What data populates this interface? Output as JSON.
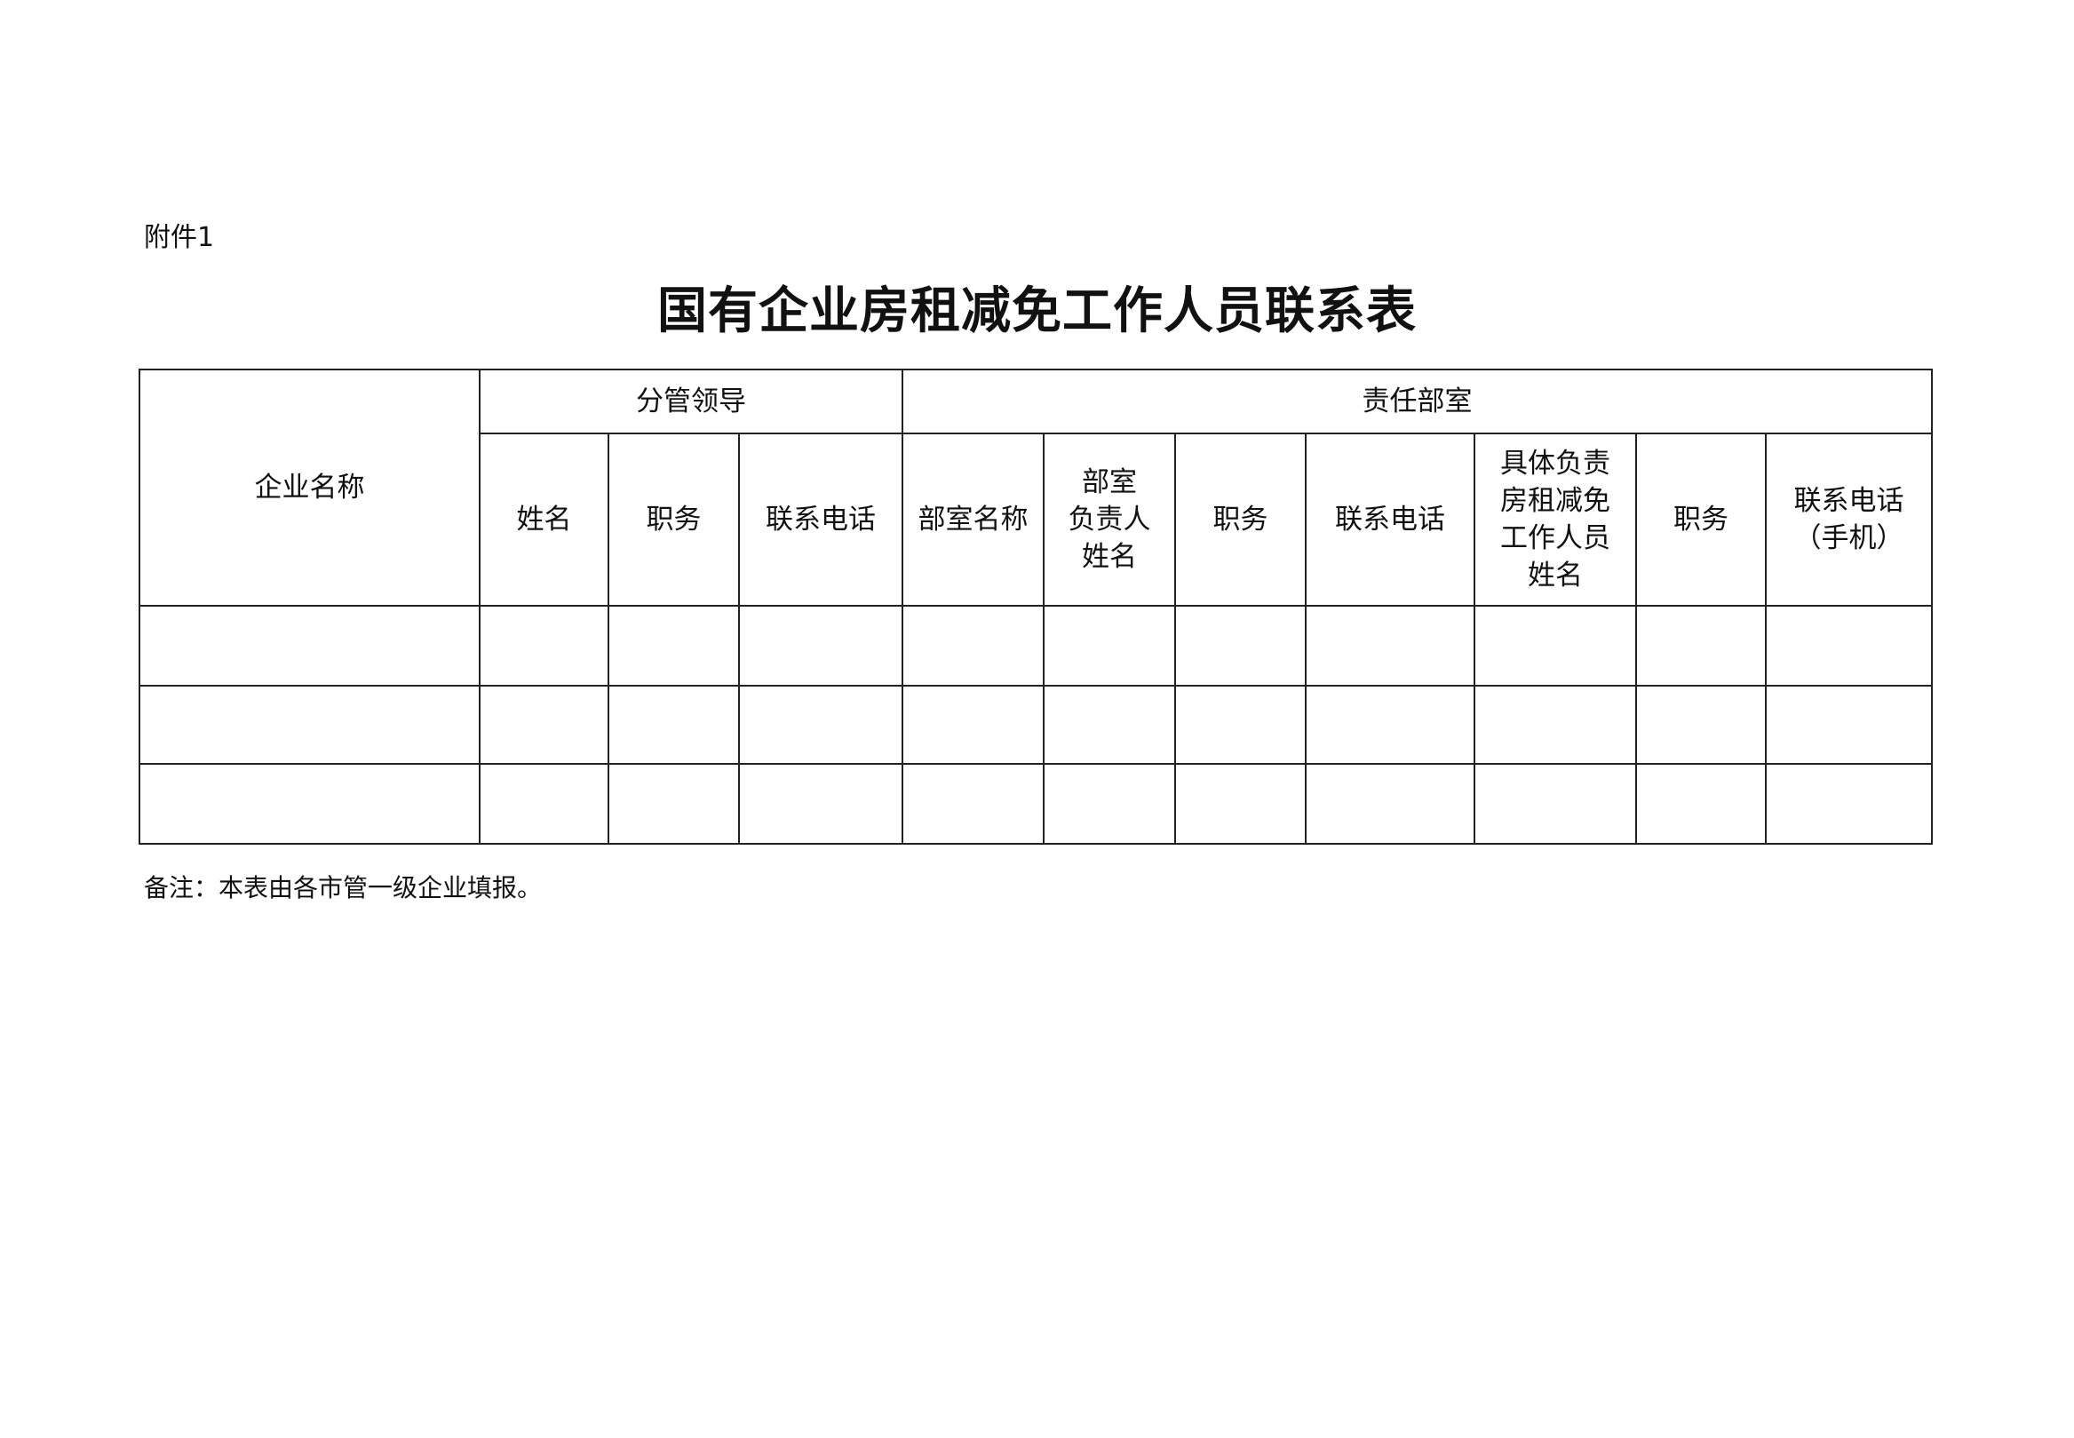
{
  "attachment_label": "附件1",
  "title": "国有企业房租减免工作人员联系表",
  "table": {
    "company_name": "企业名称",
    "group_leader": "分管领导",
    "group_department": "责任部室",
    "leader_columns": [
      [
        "姓名"
      ],
      [
        "职务"
      ],
      [
        "联系电话"
      ]
    ],
    "department_columns": [
      [
        "部室名称"
      ],
      [
        "部室",
        "负责人",
        "姓名"
      ],
      [
        "职务"
      ],
      [
        "联系电话"
      ],
      [
        "具体负责",
        "房租减免",
        "工作人员",
        "姓名"
      ],
      [
        "职务"
      ],
      [
        "联系电话",
        "（手机）"
      ]
    ],
    "rows": [
      [
        "",
        "",
        "",
        "",
        "",
        "",
        "",
        "",
        "",
        "",
        ""
      ],
      [
        "",
        "",
        "",
        "",
        "",
        "",
        "",
        "",
        "",
        "",
        ""
      ],
      [
        "",
        "",
        "",
        "",
        "",
        "",
        "",
        "",
        "",
        "",
        ""
      ]
    ]
  },
  "note": "备注：本表由各市管一级企业填报。"
}
